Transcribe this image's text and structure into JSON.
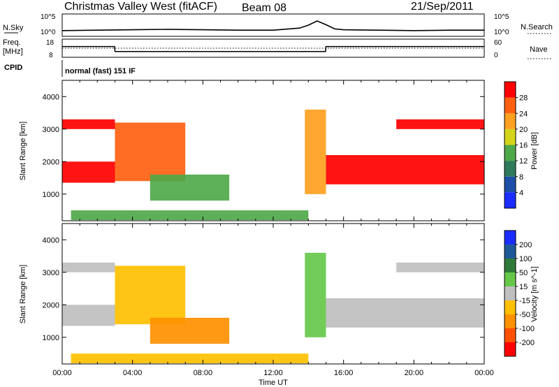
{
  "header": {
    "station": "Christmas Valley West (fitACF)",
    "beam": "Beam 08",
    "date": "21/Sep/2011"
  },
  "side_labels": {
    "nsky": "N.Sky",
    "freq": "Freq.",
    "freq_unit": "[MHz]",
    "cpid": "CPID",
    "nsearch": "N.Search",
    "nave": "Nave",
    "cpid_text": "normal (fast) 151 IF"
  },
  "noise_axis": {
    "left_ticks": [
      "10^5",
      "10^0"
    ],
    "right_ticks": [
      "10^5",
      "10^0"
    ]
  },
  "freq_axis": {
    "left_ticks": [
      "18",
      "8"
    ],
    "right_ticks": [
      "60",
      "0"
    ]
  },
  "chart_data": [
    {
      "type": "line",
      "title": "",
      "panel": "noise",
      "xlabel": "",
      "ylabel": "",
      "series": [
        {
          "name": "N.Sky",
          "x": [
            0,
            2,
            4,
            6,
            8,
            10,
            12,
            13.5,
            14,
            14.5,
            15,
            15.5,
            16,
            18,
            20,
            22,
            24
          ],
          "values": [
            1.2,
            1.3,
            1.4,
            1.5,
            1.4,
            1.3,
            1.3,
            1.8,
            2.5,
            3.5,
            2.6,
            1.6,
            1.4,
            1.3,
            1.2,
            1.3,
            1.3
          ]
        }
      ]
    },
    {
      "type": "line",
      "title": "",
      "panel": "frequency",
      "xlabel": "",
      "ylabel": "",
      "series": [
        {
          "name": "Freq.",
          "x": [
            0,
            2.98,
            3.0,
            14.98,
            15.0,
            24
          ],
          "values": [
            14,
            14,
            11,
            11,
            14,
            14
          ]
        },
        {
          "name": "Nave",
          "x": [
            0,
            24
          ],
          "values": [
            30,
            30
          ]
        }
      ]
    },
    {
      "type": "heatmap",
      "title": "",
      "panel": "power",
      "xlabel": "",
      "ylabel": "Slant Range [km]",
      "xlim": [
        0,
        24
      ],
      "ylim": [
        180,
        4500
      ],
      "x_ticks": [
        "00:00",
        "04:00",
        "08:00",
        "12:00",
        "16:00",
        "20:00",
        "00:00"
      ],
      "y_ticks": [
        1000,
        2000,
        3000,
        4000
      ],
      "colorbar": {
        "label": "Power [dB]",
        "ticks": [
          4,
          8,
          12,
          16,
          20,
          24,
          28
        ]
      },
      "regions": [
        {
          "t0": 0,
          "t1": 3,
          "r0": 1350,
          "r1": 2000,
          "value": 28
        },
        {
          "t0": 0,
          "t1": 3,
          "r0": 3000,
          "r1": 3300,
          "value": 28
        },
        {
          "t0": 3,
          "t1": 7,
          "r0": 1400,
          "r1": 3200,
          "value": 24
        },
        {
          "t0": 5,
          "t1": 9.5,
          "r0": 800,
          "r1": 1600,
          "value": 12
        },
        {
          "t0": 0.5,
          "t1": 14,
          "r0": 200,
          "r1": 500,
          "value": 14
        },
        {
          "t0": 13.8,
          "t1": 15,
          "r0": 1000,
          "r1": 3600,
          "value": 20
        },
        {
          "t0": 15,
          "t1": 24,
          "r0": 1300,
          "r1": 2200,
          "value": 28
        },
        {
          "t0": 19,
          "t1": 24,
          "r0": 3000,
          "r1": 3300,
          "value": 28
        }
      ]
    },
    {
      "type": "heatmap",
      "title": "",
      "panel": "velocity",
      "xlabel": "Time UT",
      "ylabel": "Slant Range [km]",
      "xlim": [
        0,
        24
      ],
      "ylim": [
        180,
        4500
      ],
      "x_ticks": [
        "00:00",
        "04:00",
        "08:00",
        "12:00",
        "16:00",
        "20:00",
        "00:00"
      ],
      "y_ticks": [
        1000,
        2000,
        3000,
        4000
      ],
      "colorbar": {
        "label": "Velocity [m s^-1]",
        "ticks": [
          200,
          100,
          50,
          15,
          -15,
          -50,
          -100,
          -200
        ]
      },
      "regions": [
        {
          "t0": 0,
          "t1": 3,
          "r0": 1350,
          "r1": 2000,
          "value": 0
        },
        {
          "t0": 0,
          "t1": 3,
          "r0": 3000,
          "r1": 3300,
          "value": 0
        },
        {
          "t0": 3,
          "t1": 7,
          "r0": 1400,
          "r1": 3200,
          "value": -30
        },
        {
          "t0": 5,
          "t1": 9.5,
          "r0": 800,
          "r1": 1600,
          "value": -60
        },
        {
          "t0": 0.5,
          "t1": 14,
          "r0": 200,
          "r1": 500,
          "value": -40
        },
        {
          "t0": 13.8,
          "t1": 15,
          "r0": 1000,
          "r1": 3600,
          "value": 40
        },
        {
          "t0": 15,
          "t1": 24,
          "r0": 1300,
          "r1": 2200,
          "value": 0
        },
        {
          "t0": 19,
          "t1": 24,
          "r0": 3000,
          "r1": 3300,
          "value": 0
        }
      ]
    }
  ],
  "colors": {
    "power_scale": [
      "#1a2cff",
      "#1d4fa8",
      "#2f7a5a",
      "#4fa84a",
      "#d4d41a",
      "#ffa020",
      "#ff6010",
      "#ff0000"
    ],
    "velocity_scale": [
      "#1a2cff",
      "#1e5a9a",
      "#2f7a3a",
      "#66c84a",
      "#bfbfbf",
      "#ffc000",
      "#ff9000",
      "#ff5000",
      "#ff0000"
    ]
  }
}
